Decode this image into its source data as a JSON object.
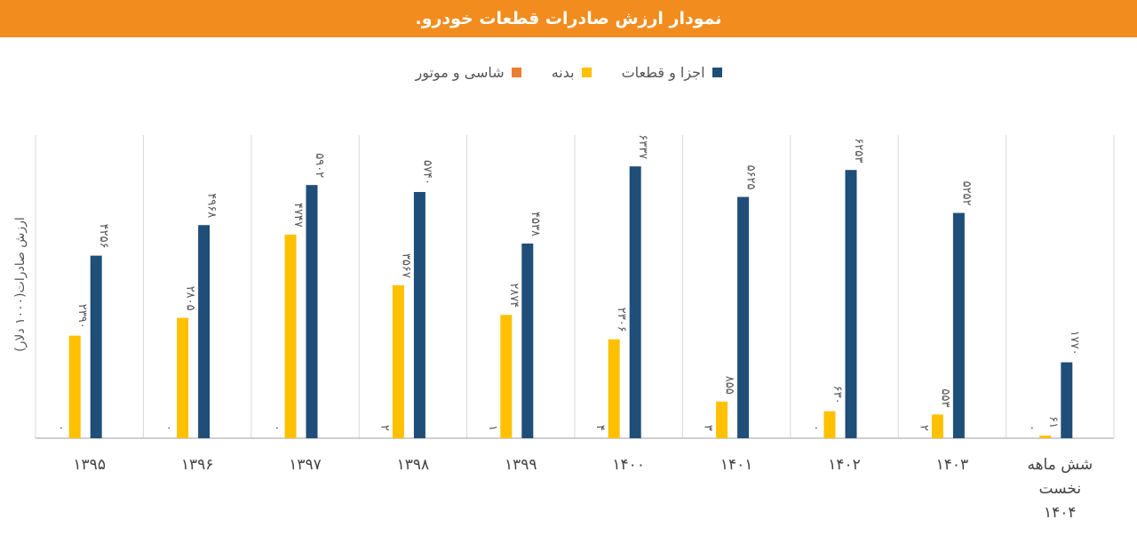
{
  "title": ".نمودار ارزش صادرات قطعات خودرو",
  "chart_data": {
    "type": "bar",
    "ylabel": "ارزش صادرات(۱۰۰۰ دلار)",
    "xlabel": "",
    "ylim": [
      0,
      6900
    ],
    "grid": false,
    "legend_position": "top",
    "categories": [
      "۱۳۹۵",
      "۱۳۹۶",
      "۱۳۹۷",
      "۱۳۹۸",
      "۱۳۹۹",
      "۱۴۰۰",
      "۱۴۰۱",
      "۱۴۰۲",
      "۱۴۰۳",
      "شش ماهه نخست ۱۴۰۴"
    ],
    "category_lines": [
      [
        "۱۳۹۵"
      ],
      [
        "۱۳۹۶"
      ],
      [
        "۱۳۹۷"
      ],
      [
        "۱۳۹۸"
      ],
      [
        "۱۳۹۹"
      ],
      [
        "۱۴۰۰"
      ],
      [
        "۱۴۰۱"
      ],
      [
        "۱۴۰۲"
      ],
      [
        "۱۴۰۳"
      ],
      [
        "شش ماهه",
        "نخست",
        "۱۴۰۴"
      ]
    ],
    "series": [
      {
        "name": "شاسی و موتور",
        "color": "#ed7d31",
        "values": [
          0,
          0,
          0,
          2,
          1,
          4,
          3,
          0,
          2,
          0
        ],
        "labels": [
          "۰",
          "۰",
          "۰",
          "۲",
          "۱",
          "۴",
          "۳",
          "۰",
          "۲",
          "۰"
        ]
      },
      {
        "name": "بدنه",
        "color": "#ffc000",
        "values": [
          2390,
          2805,
          4747,
          3567,
          2874,
          2306,
          855,
          630,
          553,
          61
        ],
        "labels": [
          "۲۳۹۰",
          "۲۸۰۵",
          "۴۷۴۷",
          "۳۵۶۷",
          "۲۸۷۴",
          "۲۳۰۶",
          "۸۵۵",
          "۶۳۰",
          "۵۵۳",
          "۶۱"
        ]
      },
      {
        "name": "اجزا و قطعات",
        "color": "#1f4e79",
        "values": [
          4256,
          4968,
          5902,
          5740,
          4538,
          6337,
          5625,
          6253,
          5252,
          1770
        ],
        "labels": [
          "۴۲۵۶",
          "۴۹۶۸",
          "۵۹۰۲",
          "۵۷۴۰",
          "۴۵۳۸",
          "۶۳۳۷",
          "۵۶۲۵",
          "۶۲۵۳",
          "۵۲۵۲",
          "۱۷۷۰"
        ]
      }
    ]
  }
}
